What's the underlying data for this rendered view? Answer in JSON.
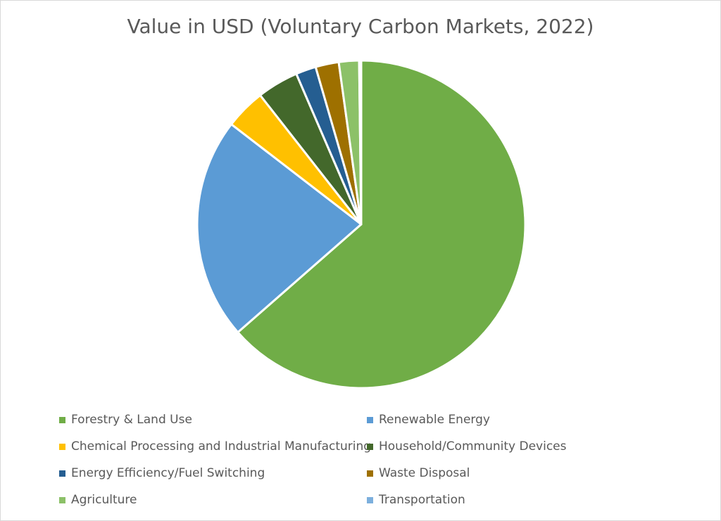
{
  "chart_data": {
    "type": "pie",
    "title": "Value in USD (Voluntary Carbon Markets, 2022)",
    "categories": [
      "Forestry & Land Use",
      "Renewable Energy",
      "Chemical Processing and Industrial Manufacturing",
      "Household/Community Devices",
      "Energy Efficiency/Fuel Switching",
      "Waste Disposal",
      "Agriculture",
      "Transportation"
    ],
    "values": [
      63.8,
      22.0,
      4.0,
      4.1,
      2.0,
      2.3,
      2.0,
      0.2
    ],
    "colors": [
      "#70ad47",
      "#5b9bd5",
      "#ffc000",
      "#43682b",
      "#255e91",
      "#9e7000",
      "#8cc168",
      "#7cafdd"
    ],
    "legend_position": "bottom"
  }
}
